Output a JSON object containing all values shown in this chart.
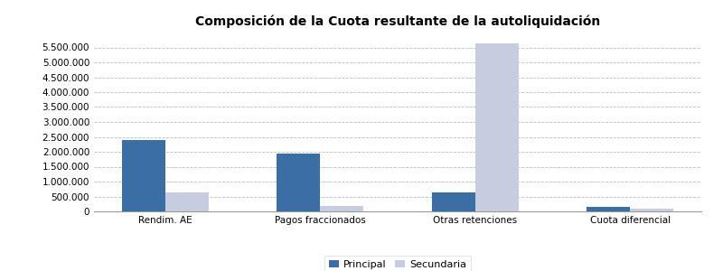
{
  "title": "Composición de la Cuota resultante de la autoliquidación",
  "categories": [
    "Rendim. AE",
    "Pagos fraccionados",
    "Otras retenciones",
    "Cuota diferencial"
  ],
  "principal": [
    2400000,
    1950000,
    650000,
    150000
  ],
  "secundaria": [
    650000,
    175000,
    5650000,
    100000
  ],
  "color_principal": "#3A6EA5",
  "color_secundaria": "#C8CCE0",
  "ylim": [
    0,
    6000000
  ],
  "yticks": [
    0,
    500000,
    1000000,
    1500000,
    2000000,
    2500000,
    3000000,
    3500000,
    4000000,
    4500000,
    5000000,
    5500000
  ],
  "legend_labels": [
    "Principal",
    "Secundaria"
  ],
  "bar_width": 0.28,
  "title_fontsize": 10,
  "tick_fontsize": 7.5,
  "legend_fontsize": 8,
  "bg_color": "#FFFFFF",
  "grid_color": "#BBBBBB"
}
